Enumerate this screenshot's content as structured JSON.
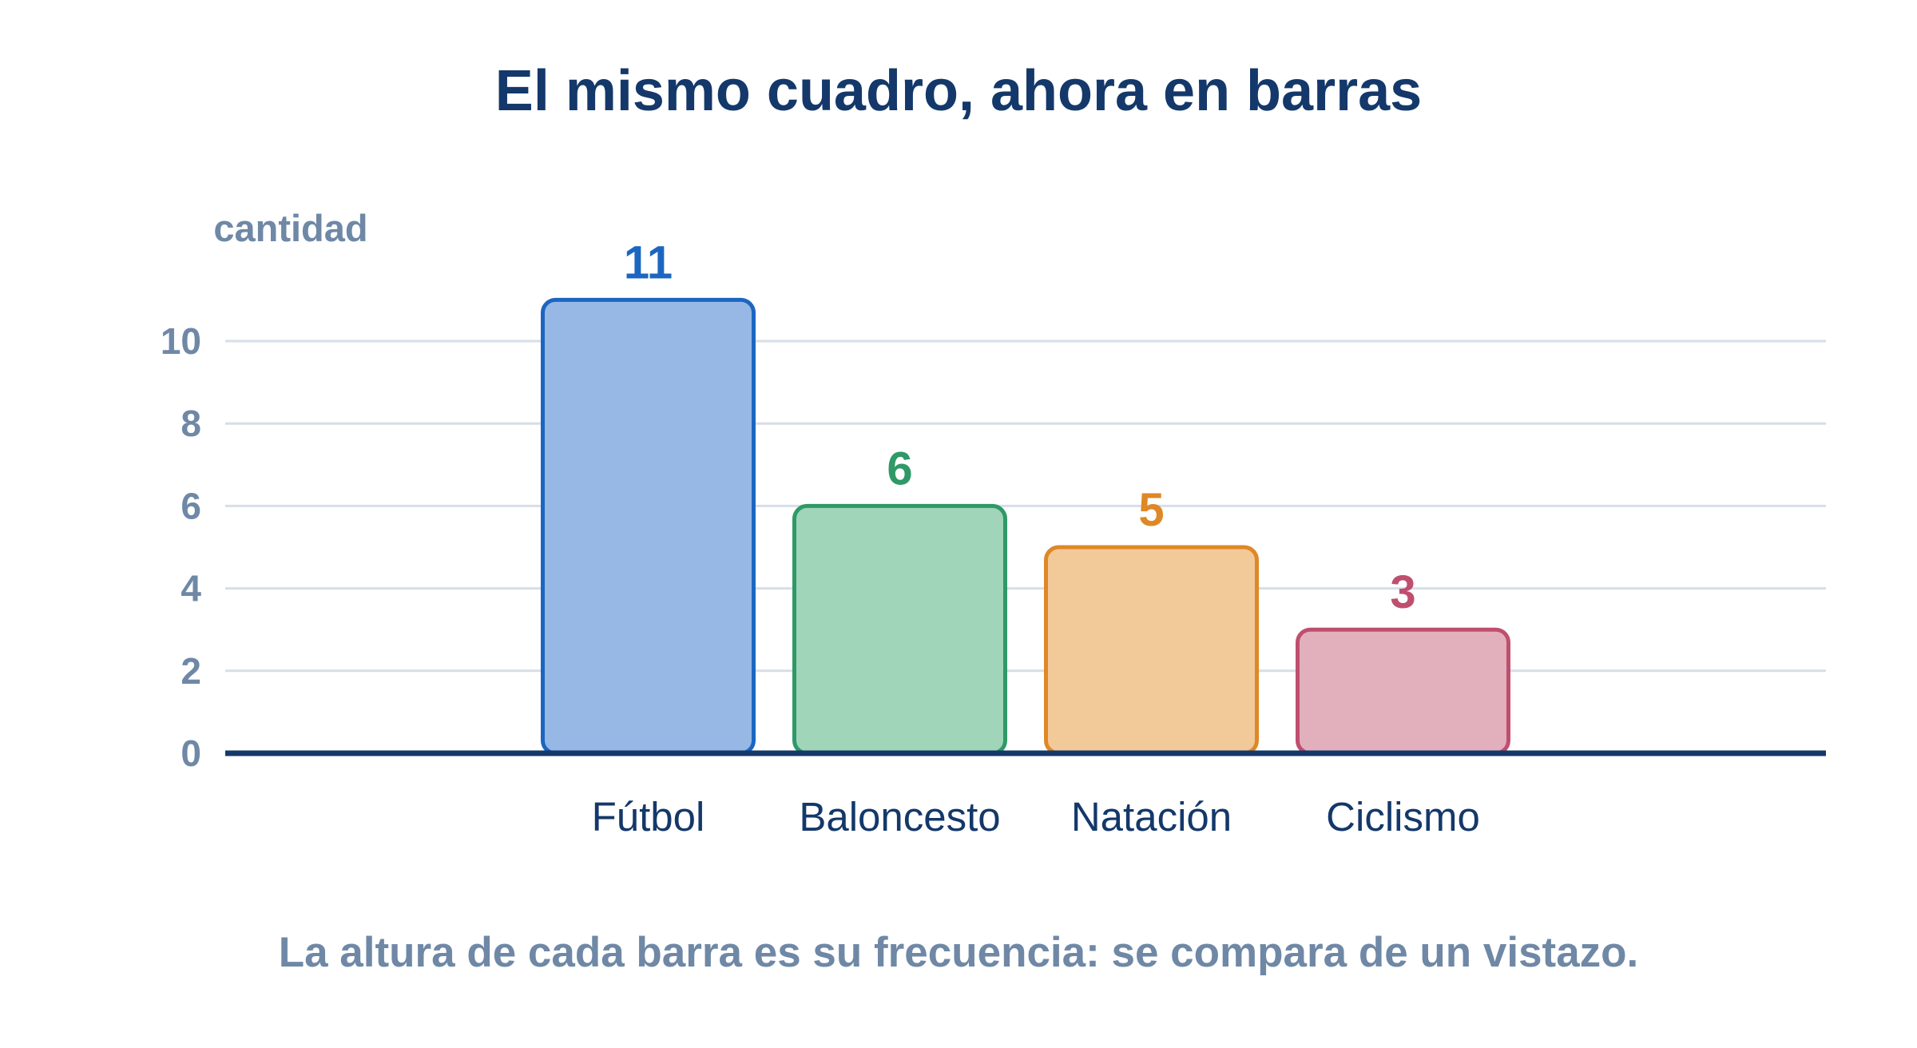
{
  "chart_data": {
    "type": "bar",
    "title": "El mismo cuadro, ahora en barras",
    "xlabel": "",
    "ylabel": "cantidad",
    "categories": [
      "Fútbol",
      "Baloncesto",
      "Natación",
      "Ciclismo"
    ],
    "values": [
      11,
      6,
      5,
      3
    ],
    "value_labels": [
      "11",
      "6",
      "5",
      "3"
    ],
    "ylim": [
      0,
      12
    ],
    "yticks": [
      0,
      2,
      4,
      6,
      8,
      10
    ],
    "ytick_labels": [
      "0",
      "2",
      "4",
      "6",
      "8",
      "10"
    ],
    "grid": true,
    "legend": "none",
    "colors": {
      "fill": [
        "#97b8e4",
        "#a0d5ba",
        "#f2c999",
        "#e2b0bc"
      ],
      "stroke": [
        "#1c66c1",
        "#2f9967",
        "#de8827",
        "#bf4f6e"
      ],
      "title": "#14386a",
      "axis_text": "#6f88a6",
      "category_text": "#14386a",
      "baseline": "#14386a",
      "grid": "#d7dee7"
    }
  },
  "caption": "La altura de cada barra es su frecuencia: se compara de un vistazo."
}
